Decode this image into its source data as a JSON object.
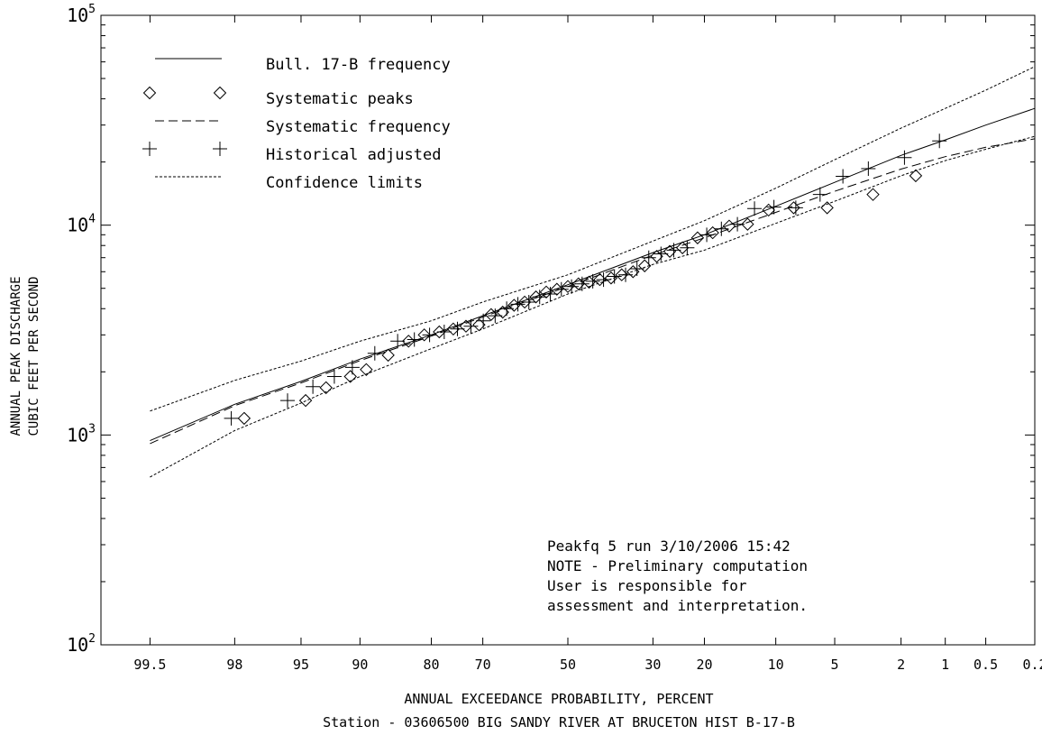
{
  "chart_data": {
    "type": "scatter",
    "title": "",
    "xlabel": "ANNUAL EXCEEDANCE PROBABILITY, PERCENT",
    "ylabel_line1": "ANNUAL PEAK DISCHARGE",
    "ylabel_line2": "CUBIC FEET PER SECOND",
    "subtitle": "Station - 03606500  BIG SANDY RIVER AT BRUCETON HIST B-17-B",
    "x_scale": "normal-probability",
    "y_scale": "log10",
    "ylim": [
      100,
      100000
    ],
    "xlim": [
      99.8,
      0.2
    ],
    "x_ticks": [
      {
        "label": "99.5",
        "value": 99.5
      },
      {
        "label": "98",
        "value": 98
      },
      {
        "label": "95",
        "value": 95
      },
      {
        "label": "90",
        "value": 90
      },
      {
        "label": "80",
        "value": 80
      },
      {
        "label": "70",
        "value": 70
      },
      {
        "label": "50",
        "value": 50
      },
      {
        "label": "30",
        "value": 30
      },
      {
        "label": "20",
        "value": 20
      },
      {
        "label": "10",
        "value": 10
      },
      {
        "label": "5",
        "value": 5
      },
      {
        "label": "2",
        "value": 2
      },
      {
        "label": "1",
        "value": 1
      },
      {
        "label": "0.5",
        "value": 0.5
      },
      {
        "label": "0.2",
        "value": 0.2
      }
    ],
    "y_ticks": [
      {
        "base": "10",
        "exp": "2",
        "value": 100
      },
      {
        "base": "10",
        "exp": "3",
        "value": 1000
      },
      {
        "base": "10",
        "exp": "4",
        "value": 10000
      },
      {
        "base": "10",
        "exp": "5",
        "value": 100000
      }
    ],
    "legend_position": "top-left",
    "legend": [
      {
        "key": "bull",
        "label": "Bull. 17-B frequency",
        "style": "solid"
      },
      {
        "key": "sys_peaks",
        "label": "Systematic peaks",
        "style": "diamond"
      },
      {
        "key": "sys_freq",
        "label": "Systematic frequency",
        "style": "dashed"
      },
      {
        "key": "hist",
        "label": "Historical adjusted",
        "style": "plus"
      },
      {
        "key": "conf",
        "label": "Confidence limits",
        "style": "dotted"
      }
    ],
    "annotation": [
      "Peakfq 5 run 3/10/2006 15:42",
      "NOTE - Preliminary computation",
      "User is responsible for",
      "assessment and interpretation."
    ],
    "series": [
      {
        "key": "bull",
        "style": "solid",
        "x": [
          99.5,
          98,
          95,
          90,
          80,
          70,
          50,
          30,
          20,
          10,
          5,
          2,
          1,
          0.5,
          0.2
        ],
        "y": [
          940,
          1400,
          1800,
          2300,
          3000,
          3700,
          5200,
          7400,
          9000,
          12300,
          16000,
          21500,
          25500,
          30000,
          36000
        ]
      },
      {
        "key": "sys_freq",
        "style": "dashed",
        "x": [
          99.5,
          98,
          95,
          90,
          80,
          70,
          50,
          30,
          20,
          10,
          5,
          2,
          1,
          0.5,
          0.2
        ],
        "y": [
          910,
          1380,
          1770,
          2260,
          2960,
          3650,
          5100,
          7200,
          8700,
          11500,
          14500,
          18500,
          21200,
          23500,
          25800
        ]
      },
      {
        "key": "conf_upper",
        "style": "dotted",
        "x": [
          99.5,
          98,
          95,
          90,
          80,
          70,
          50,
          30,
          20,
          10,
          5,
          2,
          1,
          0.5,
          0.2
        ],
        "y": [
          1300,
          1820,
          2250,
          2800,
          3500,
          4300,
          5800,
          8400,
          10500,
          15000,
          20500,
          29000,
          36000,
          44000,
          57000
        ]
      },
      {
        "key": "conf_lower",
        "style": "dotted",
        "x": [
          99.5,
          98,
          95,
          90,
          80,
          70,
          50,
          30,
          20,
          10,
          5,
          2,
          1,
          0.5,
          0.2
        ],
        "y": [
          630,
          1050,
          1420,
          1900,
          2580,
          3200,
          4700,
          6500,
          7600,
          10200,
          13000,
          17200,
          20300,
          23000,
          26500
        ]
      },
      {
        "key": "sys_peaks",
        "style": "diamond",
        "x": [
          97.7,
          94.7,
          93.2,
          91,
          89.3,
          86.6,
          83.7,
          81.2,
          78.6,
          76,
          73.5,
          70.8,
          68.2,
          65.6,
          63,
          60.5,
          57.8,
          55.3,
          52.7,
          50,
          47.4,
          44.8,
          42.2,
          39.5,
          37,
          34.4,
          31.8,
          29.2,
          26.5,
          24,
          21.2,
          18.6,
          16,
          13.4,
          10.8,
          8.2,
          5.5,
          3,
          1.6
        ],
        "y": [
          1200,
          1460,
          1680,
          1900,
          2050,
          2400,
          2800,
          3000,
          3100,
          3200,
          3300,
          3350,
          3750,
          3850,
          4150,
          4300,
          4550,
          4800,
          4950,
          5100,
          5250,
          5350,
          5500,
          5600,
          5800,
          6000,
          6400,
          7100,
          7500,
          7800,
          8700,
          9200,
          9900,
          10100,
          11800,
          12100,
          12100,
          14000,
          17200
        ]
      },
      {
        "key": "hist",
        "style": "plus",
        "x": [
          98.1,
          95.8,
          94.2,
          92.5,
          90.8,
          88.3,
          85.3,
          82.8,
          80.3,
          77.7,
          75.2,
          72.5,
          69.9,
          67.3,
          64.7,
          62.1,
          59.5,
          56.9,
          54.3,
          51.6,
          49.1,
          46.5,
          43.9,
          41.3,
          38.7,
          36.1,
          33.5,
          30.9,
          28.3,
          25.7,
          23.1,
          19.6,
          17.2,
          14.8,
          12.5,
          10.2,
          8,
          6,
          4.5,
          3.2,
          1.9,
          1.1
        ],
        "y": [
          1200,
          1460,
          1700,
          1900,
          2100,
          2450,
          2800,
          2850,
          3000,
          3100,
          3200,
          3300,
          3500,
          3700,
          4000,
          4200,
          4300,
          4550,
          4700,
          4950,
          5100,
          5250,
          5400,
          5500,
          5700,
          5800,
          6200,
          7000,
          7300,
          7600,
          7800,
          9000,
          9600,
          10100,
          12000,
          12200,
          12100,
          14000,
          17100,
          18600,
          21000,
          25200
        ]
      }
    ]
  }
}
